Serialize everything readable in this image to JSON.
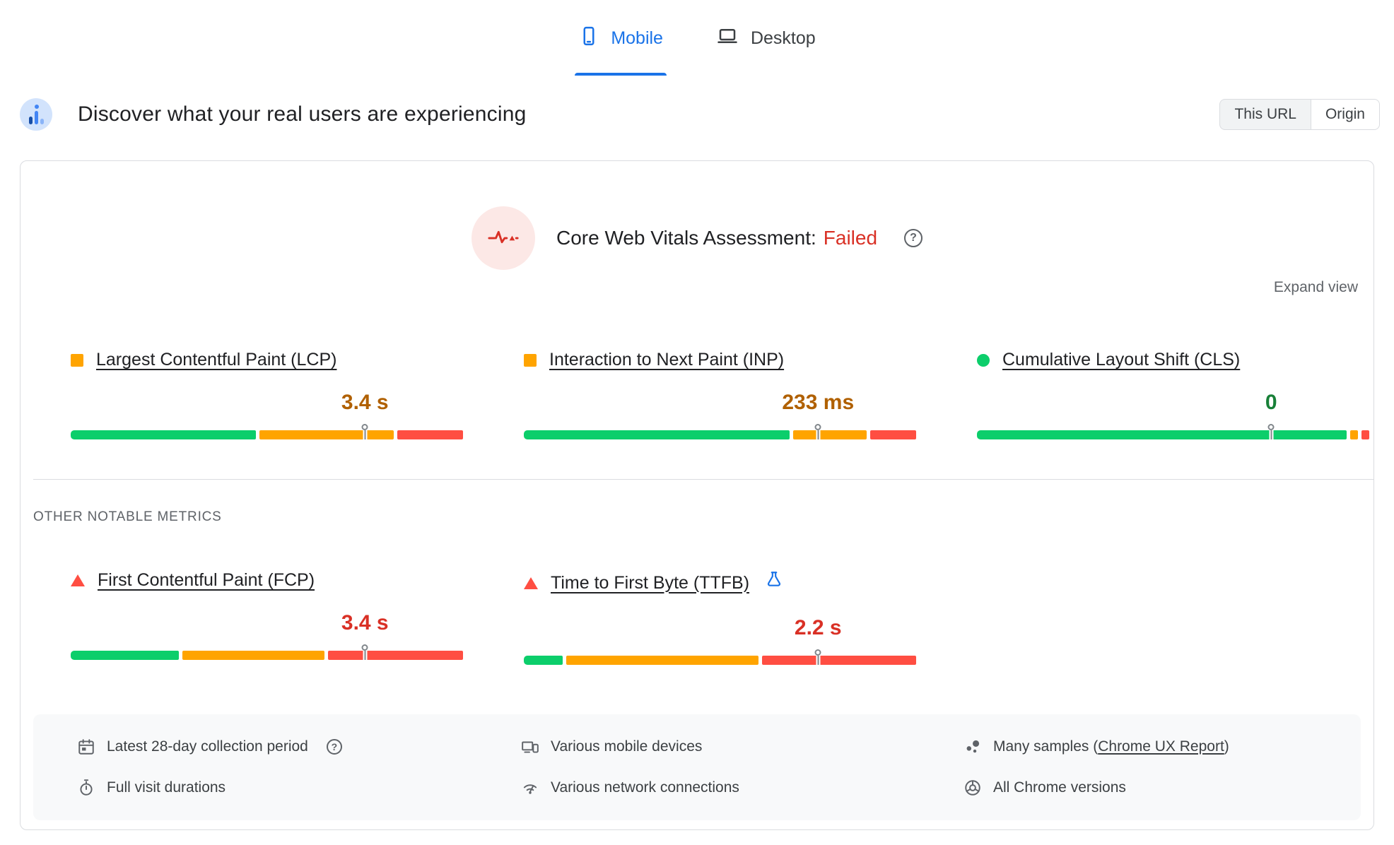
{
  "colors": {
    "accent": "#1a73e8",
    "good": "#0cce6b",
    "ni": "#ffa400",
    "poor": "#ff4e42",
    "text_good": "#188038",
    "text_ni": "#b06000",
    "text_poor": "#d93025"
  },
  "tabs": [
    {
      "label": "Mobile",
      "active": true
    },
    {
      "label": "Desktop",
      "active": false
    }
  ],
  "header": {
    "title": "Discover what your real users are experiencing",
    "scope_toggle": [
      {
        "label": "This URL",
        "selected": true
      },
      {
        "label": "Origin",
        "selected": false
      }
    ]
  },
  "card": {
    "assessment_label": "Core Web Vitals Assessment:",
    "assessment_status": "Failed",
    "expand_view_label": "Expand view",
    "other_metrics_label": "OTHER NOTABLE METRICS",
    "core_metrics": [
      {
        "name": "Largest Contentful Paint (LCP)",
        "status": "ni",
        "value": "3.4 s",
        "distribution": {
          "good": 48,
          "ni": 35,
          "poor": 17
        },
        "marker_percent": 75
      },
      {
        "name": "Interaction to Next Paint (INP)",
        "status": "ni",
        "value": "233 ms",
        "distribution": {
          "good": 69,
          "ni": 19,
          "poor": 12
        },
        "marker_percent": 75
      },
      {
        "name": "Cumulative Layout Shift (CLS)",
        "status": "good",
        "value": "0",
        "distribution": {
          "good": 96,
          "ni": 2,
          "poor": 2
        },
        "marker_percent": 75
      }
    ],
    "other_metrics": [
      {
        "name": "First Contentful Paint (FCP)",
        "status": "poor",
        "value": "3.4 s",
        "distribution": {
          "good": 28,
          "ni": 37,
          "poor": 35
        },
        "marker_percent": 75
      },
      {
        "name": "Time to First Byte (TTFB)",
        "status": "poor",
        "value": "2.2 s",
        "experimental": true,
        "distribution": {
          "good": 10,
          "ni": 50,
          "poor": 40
        },
        "marker_percent": 75
      }
    ],
    "footer": {
      "collection_period": "Latest 28-day collection period",
      "visit_durations": "Full visit durations",
      "devices": "Various mobile devices",
      "connections": "Various network connections",
      "samples_prefix": "Many samples (",
      "samples_link": "Chrome UX Report",
      "samples_suffix": ")",
      "chrome_versions": "All Chrome versions"
    }
  }
}
